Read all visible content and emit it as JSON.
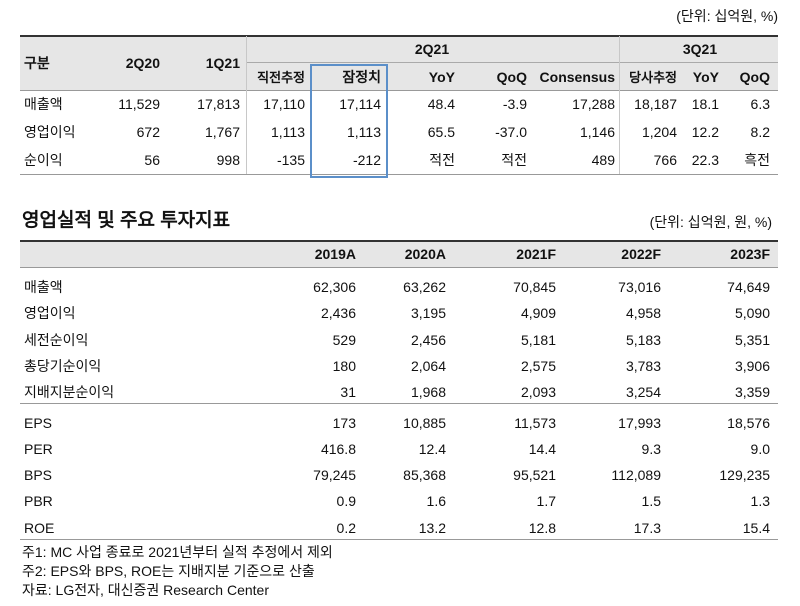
{
  "table1": {
    "unit": "(단위: 십억원, %)",
    "header_top": [
      "구분",
      "2Q20",
      "1Q21",
      "2Q21",
      "3Q21"
    ],
    "header_sub": [
      "직전추정",
      "잠정치",
      "YoY",
      "QoQ",
      "Consensus",
      "당사추정",
      "YoY",
      "QoQ"
    ],
    "rows": [
      [
        "매출액",
        "11,529",
        "17,813",
        "17,110",
        "17,114",
        "48.4",
        "-3.9",
        "17,288",
        "18,187",
        "18.1",
        "6.3"
      ],
      [
        "영업이익",
        "672",
        "1,767",
        "1,113",
        "1,113",
        "65.5",
        "-37.0",
        "1,146",
        "1,204",
        "12.2",
        "8.2"
      ],
      [
        "순이익",
        "56",
        "998",
        "-135",
        "-212",
        "적전",
        "적전",
        "489",
        "766",
        "22.3",
        "흑전"
      ]
    ]
  },
  "table2": {
    "title": "영업실적 및 주요 투자지표",
    "unit": "(단위: 십억원, 원, %)",
    "columns": [
      "2019A",
      "2020A",
      "2021F",
      "2022F",
      "2023F"
    ],
    "rows": [
      [
        "매출액",
        "62,306",
        "63,262",
        "70,845",
        "73,016",
        "74,649"
      ],
      [
        "영업이익",
        "2,436",
        "3,195",
        "4,909",
        "4,958",
        "5,090"
      ],
      [
        "세전순이익",
        "529",
        "2,456",
        "5,181",
        "5,183",
        "5,351"
      ],
      [
        "총당기순이익",
        "180",
        "2,064",
        "2,575",
        "3,783",
        "3,906"
      ],
      [
        "지배지분순이익",
        "31",
        "1,968",
        "2,093",
        "3,254",
        "3,359"
      ],
      [
        "EPS",
        "173",
        "10,885",
        "11,573",
        "17,993",
        "18,576"
      ],
      [
        "PER",
        "416.8",
        "12.4",
        "14.4",
        "9.3",
        "9.0"
      ],
      [
        "BPS",
        "79,245",
        "85,368",
        "95,521",
        "112,089",
        "129,235"
      ],
      [
        "PBR",
        "0.9",
        "1.6",
        "1.7",
        "1.5",
        "1.3"
      ],
      [
        "ROE",
        "0.2",
        "13.2",
        "12.8",
        "17.3",
        "15.4"
      ]
    ]
  },
  "notes": [
    "주1: MC 사업 종료로 2021년부터 실적 추정에서 제외",
    "주2: EPS와 BPS, ROE는 지배지분 기준으로 산출",
    "자료: LG전자, 대신증권 Research Center"
  ]
}
